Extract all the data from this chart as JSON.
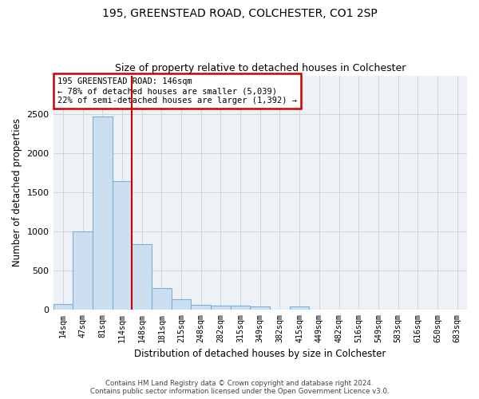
{
  "title1": "195, GREENSTEAD ROAD, COLCHESTER, CO1 2SP",
  "title2": "Size of property relative to detached houses in Colchester",
  "xlabel": "Distribution of detached houses by size in Colchester",
  "ylabel": "Number of detached properties",
  "categories": [
    "14sqm",
    "47sqm",
    "81sqm",
    "114sqm",
    "148sqm",
    "181sqm",
    "215sqm",
    "248sqm",
    "282sqm",
    "315sqm",
    "349sqm",
    "382sqm",
    "415sqm",
    "449sqm",
    "482sqm",
    "516sqm",
    "549sqm",
    "583sqm",
    "616sqm",
    "650sqm",
    "683sqm"
  ],
  "values": [
    70,
    1000,
    2470,
    1650,
    840,
    270,
    130,
    55,
    50,
    45,
    40,
    0,
    35,
    0,
    0,
    0,
    0,
    0,
    0,
    0,
    0
  ],
  "bar_color": "#ccdff0",
  "bar_edge_color": "#7bafd4",
  "vline_position": 3.5,
  "vline_color": "#cc0000",
  "annotation_text": "195 GREENSTEAD ROAD: 146sqm\n← 78% of detached houses are smaller (5,039)\n22% of semi-detached houses are larger (1,392) →",
  "annotation_box_facecolor": "#ffffff",
  "annotation_box_edgecolor": "#cc0000",
  "ylim": [
    0,
    3000
  ],
  "yticks": [
    0,
    500,
    1000,
    1500,
    2000,
    2500
  ],
  "footer1": "Contains HM Land Registry data © Crown copyright and database right 2024.",
  "footer2": "Contains public sector information licensed under the Open Government Licence v3.0.",
  "bg_color": "#ffffff",
  "plot_bg_color": "#eef2f7",
  "grid_color": "#c8d0da"
}
